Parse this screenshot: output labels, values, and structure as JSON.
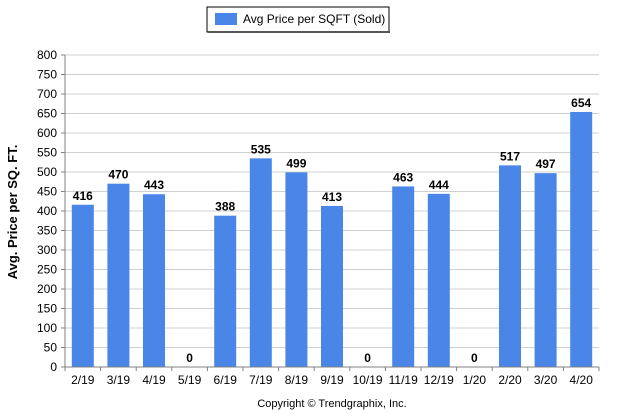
{
  "chart_data": {
    "type": "bar",
    "categories": [
      "2/19",
      "3/19",
      "4/19",
      "5/19",
      "6/19",
      "7/19",
      "8/19",
      "9/19",
      "10/19",
      "11/19",
      "12/19",
      "1/20",
      "2/20",
      "3/20",
      "4/20"
    ],
    "series": [
      {
        "name": "Avg Price per SQFT (Sold)",
        "values": [
          416,
          470,
          443,
          0,
          388,
          535,
          499,
          413,
          0,
          463,
          444,
          0,
          517,
          497,
          654
        ],
        "color": "#4a86e8"
      }
    ],
    "title": "",
    "xlabel": "",
    "ylabel": "Avg. Price per SQ. FT.",
    "ylim": [
      0,
      800
    ],
    "yticks": [
      0,
      50,
      100,
      150,
      200,
      250,
      300,
      350,
      400,
      450,
      500,
      550,
      600,
      650,
      700,
      750,
      800
    ],
    "grid": true,
    "legend_position": "top",
    "data_labels": true
  },
  "footer": {
    "copyright": "Copyright © Trendgraphix, Inc."
  }
}
